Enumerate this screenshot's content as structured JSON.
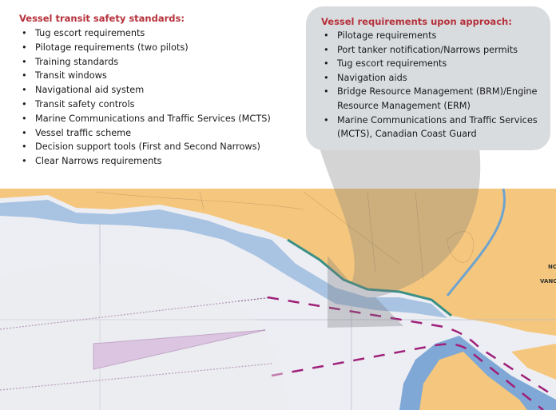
{
  "left_panel": {
    "heading": "Vessel transit safety standards:",
    "items": [
      "Tug escort requirements",
      "Pilotage requirements (two pilots)",
      "Training standards",
      "Transit windows",
      "Navigational aid system",
      "Transit safety controls",
      "Marine Communications and Traffic Services (MCTS)",
      "Vessel traffic scheme",
      "Decision support tools (First and Second Narrows)",
      "Clear Narrows requirements"
    ]
  },
  "callout": {
    "heading": "Vessel requirements upon approach:",
    "items": [
      "Pilotage requirements",
      "Port tanker notification/Narrows permits",
      "Tug escort requirements",
      "Navigation aids",
      "Bridge Resource Management (BRM)/Engine Resource Management (ERM)",
      "Marine Communications and Traffic Services (MCTS), Canadian Coast Guard"
    ]
  },
  "map": {
    "labels": [
      "NO",
      "VANC"
    ],
    "colors": {
      "land": "#f5c77e",
      "water": "#eceef3",
      "shallow": "#8fb2d8",
      "route": "#a0207a",
      "heading": "#b5303a"
    }
  }
}
